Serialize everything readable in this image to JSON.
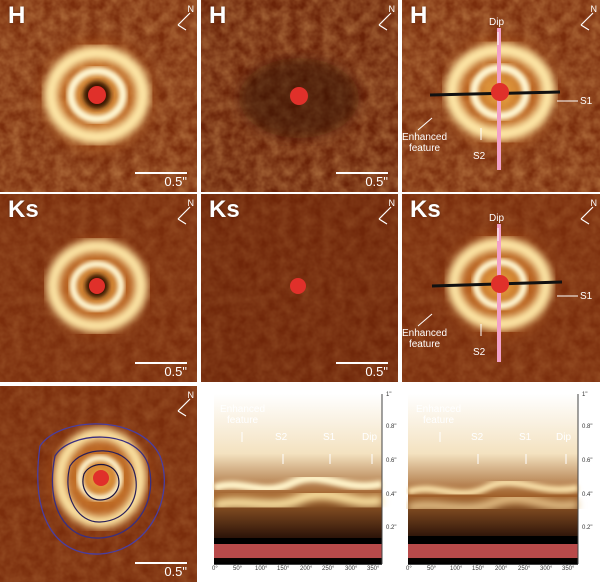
{
  "figure": {
    "panels": [
      {
        "band": "H",
        "scale": "0.5\""
      },
      {
        "band": "H",
        "scale": "0.5\""
      },
      {
        "band": "H",
        "scale": "0.5\"",
        "dip": "Dip",
        "s1": "S1",
        "s2": "S2",
        "enhanced": "Enhanced\nfeature"
      },
      {
        "band": "Ks",
        "scale": "0.5\""
      },
      {
        "band": "Ks",
        "scale": "0.5\""
      },
      {
        "band": "Ks",
        "scale": "0.5\"",
        "dip": "Dip",
        "s1": "S1",
        "s2": "S2",
        "enhanced": "Enhanced\nfeature"
      },
      {
        "band": "",
        "scale": "0.5\""
      }
    ],
    "compass_label": "N",
    "polar_plots": [
      {
        "enhanced": "Enhanced\nfeature",
        "s2": "S2",
        "s1": "S1",
        "dip": "Dip"
      },
      {
        "enhanced": "Enhanced\nfeature",
        "s2": "S2",
        "s1": "S1",
        "dip": "Dip"
      }
    ],
    "polar_x_ticks": [
      "0°",
      "50°",
      "100°",
      "150°",
      "200°",
      "250°",
      "300°",
      "350°"
    ],
    "polar_y_ticks": [
      "1\"",
      "0.8\"",
      "0.6\"",
      "0.4\"",
      "0.2\""
    ]
  },
  "colors": {
    "background": "#7a2d0c",
    "ring": "#ffe9a8",
    "star_mask": "#e0302a",
    "dip_line": "#f2a0c8",
    "axis_line": "#111111",
    "polar_bg": "#ffffff",
    "polar_floor": "#b94a4a"
  }
}
